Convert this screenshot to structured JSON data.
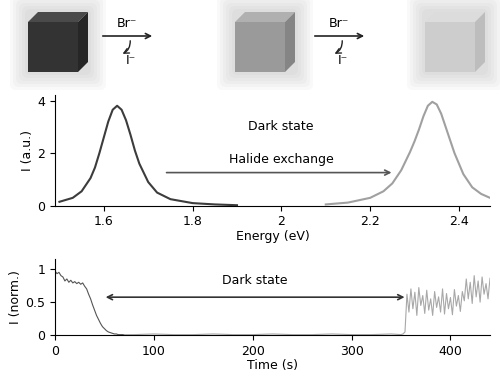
{
  "chart_data": [
    {
      "type": "line",
      "x_label": "Energy (eV)",
      "y_label": "I (a.u.)",
      "xlim": [
        1.49,
        2.47
      ],
      "xticks": [
        1.6,
        1.8,
        2,
        2.2,
        2.4
      ],
      "ylim": [
        0,
        4.2
      ],
      "yticks": [
        0,
        2,
        4
      ],
      "annotations": [
        "Dark state",
        "Halide exchange"
      ],
      "exchange_steps": [
        {
          "add": "Br⁻",
          "remove": "I⁻"
        },
        {
          "add": "Br⁻",
          "remove": "I⁻"
        }
      ],
      "series": [
        {
          "color": "#3c3c3c",
          "x": [
            1.5,
            1.53,
            1.55,
            1.57,
            1.58,
            1.59,
            1.6,
            1.61,
            1.62,
            1.63,
            1.64,
            1.65,
            1.66,
            1.67,
            1.68,
            1.7,
            1.72,
            1.75,
            1.8,
            1.85,
            1.9
          ],
          "values": [
            0.15,
            0.3,
            0.55,
            1.05,
            1.45,
            2.0,
            2.6,
            3.2,
            3.65,
            3.8,
            3.65,
            3.25,
            2.7,
            2.1,
            1.6,
            0.9,
            0.5,
            0.25,
            0.1,
            0.05,
            0.02
          ]
        },
        {
          "color": "#a0a0a0",
          "x": [
            2.1,
            2.15,
            2.2,
            2.23,
            2.25,
            2.27,
            2.29,
            2.3,
            2.31,
            2.32,
            2.33,
            2.34,
            2.35,
            2.36,
            2.37,
            2.38,
            2.39,
            2.41,
            2.43,
            2.45,
            2.47
          ],
          "values": [
            0.05,
            0.12,
            0.3,
            0.55,
            0.85,
            1.35,
            2.05,
            2.45,
            2.9,
            3.4,
            3.8,
            3.95,
            3.85,
            3.5,
            3.0,
            2.5,
            2.0,
            1.2,
            0.7,
            0.45,
            0.3
          ]
        }
      ]
    },
    {
      "type": "line",
      "x_label": "Time (s)",
      "y_label": "I (norm.)",
      "xlim": [
        0,
        440
      ],
      "xticks": [
        0,
        100,
        200,
        300,
        400
      ],
      "ylim": [
        0,
        1.15
      ],
      "yticks": [
        0,
        0.5,
        1
      ],
      "annotations": [
        "Dark state"
      ],
      "series": [
        {
          "color": "#555555",
          "x": [
            0,
            2,
            4,
            6,
            8,
            10,
            12,
            14,
            16,
            18,
            20,
            22,
            24,
            26,
            28,
            30,
            32,
            34,
            36,
            38,
            40,
            42,
            44,
            46,
            48,
            50,
            52,
            54,
            56,
            58,
            60,
            62,
            64,
            66,
            68,
            70
          ],
          "values": [
            0.97,
            0.93,
            0.95,
            0.9,
            0.88,
            0.82,
            0.85,
            0.8,
            0.83,
            0.79,
            0.81,
            0.78,
            0.8,
            0.77,
            0.79,
            0.74,
            0.7,
            0.62,
            0.55,
            0.46,
            0.38,
            0.3,
            0.24,
            0.18,
            0.13,
            0.1,
            0.07,
            0.05,
            0.04,
            0.03,
            0.02,
            0.02,
            0.01,
            0.01,
            0.01,
            0.01
          ]
        },
        {
          "color": "#a8a8a8",
          "x": [
            70,
            80,
            100,
            120,
            140,
            160,
            180,
            200,
            220,
            240,
            260,
            280,
            300,
            320,
            340,
            350,
            352,
            354,
            356,
            358,
            360,
            362,
            364,
            366,
            368,
            370,
            372,
            374,
            376,
            378,
            380,
            382,
            384,
            386,
            388,
            390,
            392,
            394,
            396,
            398,
            400,
            402,
            404,
            406,
            408,
            410,
            412,
            414,
            416,
            418,
            420,
            422,
            424,
            426,
            428,
            430,
            432,
            434,
            436,
            438,
            440
          ],
          "values": [
            0.01,
            0.01,
            0.02,
            0.01,
            0.01,
            0.02,
            0.01,
            0.01,
            0.02,
            0.01,
            0.01,
            0.02,
            0.01,
            0.01,
            0.02,
            0.01,
            0.02,
            0.05,
            0.62,
            0.35,
            0.7,
            0.4,
            0.65,
            0.3,
            0.72,
            0.45,
            0.6,
            0.33,
            0.68,
            0.38,
            0.55,
            0.3,
            0.66,
            0.42,
            0.58,
            0.35,
            0.7,
            0.32,
            0.63,
            0.4,
            0.57,
            0.31,
            0.69,
            0.44,
            0.6,
            0.36,
            0.66,
            0.52,
            0.85,
            0.55,
            0.8,
            0.48,
            0.9,
            0.58,
            0.82,
            0.5,
            0.88,
            0.62,
            0.78,
            0.55,
            0.86
          ]
        }
      ]
    }
  ]
}
